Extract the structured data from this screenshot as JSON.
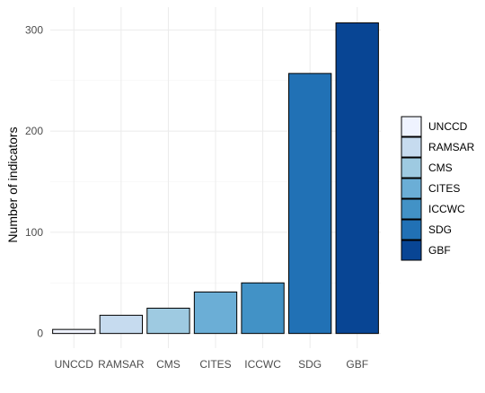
{
  "chart_data": {
    "type": "bar",
    "title": "",
    "xlabel": "",
    "ylabel": "Number of indicators",
    "categories": [
      "UNCCD",
      "RAMSAR",
      "CMS",
      "CITES",
      "ICCWC",
      "SDG",
      "GBF"
    ],
    "values": [
      4,
      18,
      25,
      41,
      50,
      257,
      307
    ],
    "ylim": [
      0,
      320
    ],
    "yticks": [
      0,
      100,
      200,
      300
    ],
    "grid": true,
    "legend_position": "right",
    "legend": [
      "UNCCD",
      "RAMSAR",
      "CMS",
      "CITES",
      "ICCWC",
      "SDG",
      "GBF"
    ],
    "colors": [
      "#eff3ff",
      "#c6dbef",
      "#9ecae1",
      "#6baed6",
      "#4292c6",
      "#2171b5",
      "#084594"
    ]
  }
}
